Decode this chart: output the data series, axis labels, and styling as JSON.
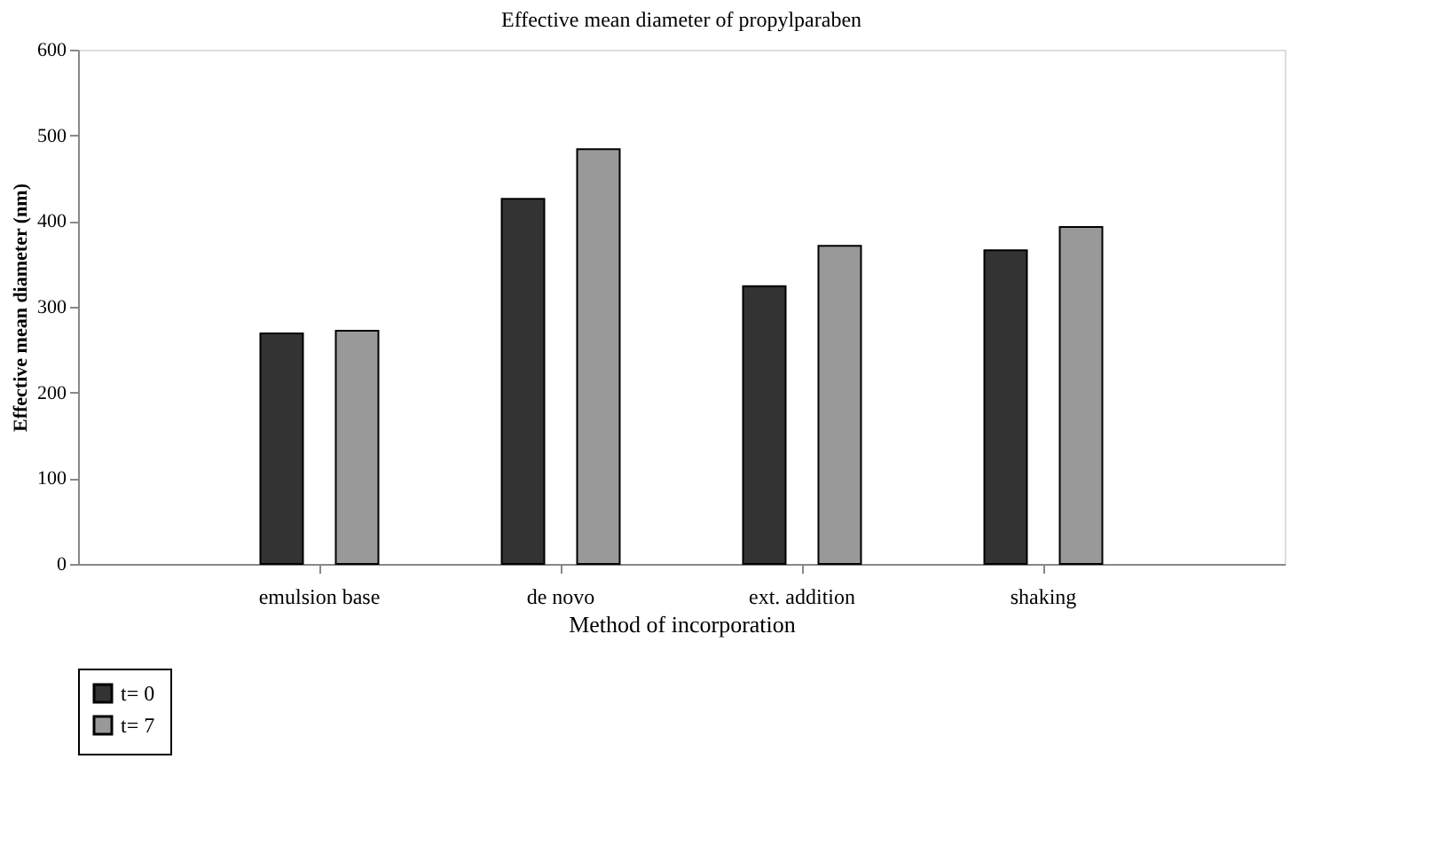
{
  "chart_data": {
    "type": "bar",
    "title": "Effective mean diameter of propylparaben",
    "xlabel": "Method of incorporation",
    "ylabel": "Effective mean diameter (nm)",
    "categories": [
      "emulsion base",
      "de novo",
      "ext. addition",
      "shaking"
    ],
    "series": [
      {
        "name": "t= 0",
        "color": "#333333",
        "values": [
          269,
          426,
          324,
          366
        ]
      },
      {
        "name": "t= 7",
        "color": "#999999",
        "values": [
          272,
          484,
          371,
          393
        ]
      }
    ],
    "ylim": [
      0,
      600
    ],
    "yticks": [
      0,
      100,
      200,
      300,
      400,
      500,
      600
    ],
    "grid": false,
    "legend": "bottom"
  }
}
